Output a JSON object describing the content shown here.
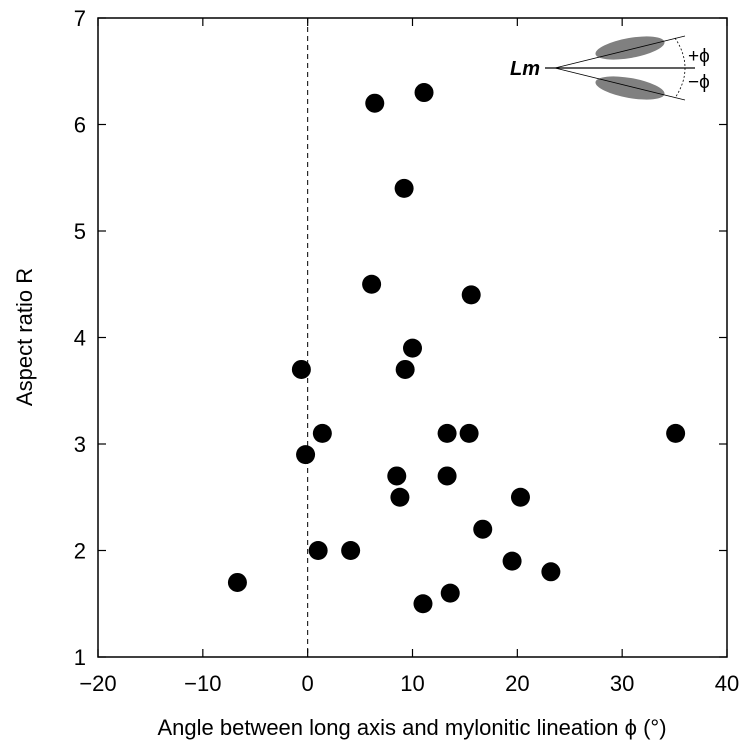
{
  "chart_data": {
    "type": "scatter",
    "xlabel": "Angle between long axis and mylonitic lineation ϕ (°)",
    "ylabel": "Aspect ratio R",
    "x": [
      -6.7,
      -0.6,
      -0.2,
      1.4,
      1.0,
      4.1,
      6.4,
      11.1,
      9.2,
      6.1,
      15.6,
      10.0,
      9.3,
      13.3,
      15.4,
      35.1,
      8.5,
      13.3,
      8.8,
      20.3,
      16.7,
      19.5,
      23.2,
      11.0,
      13.6
    ],
    "values": [
      1.7,
      3.7,
      2.9,
      3.1,
      2.0,
      2.0,
      6.2,
      6.3,
      5.4,
      4.5,
      4.4,
      3.9,
      3.7,
      3.1,
      3.1,
      3.1,
      2.7,
      2.7,
      2.5,
      2.5,
      2.2,
      1.9,
      1.8,
      1.5,
      1.6
    ],
    "color": "#000000",
    "xlim": [
      -20,
      40
    ],
    "ylim": [
      1,
      7
    ],
    "xticks": [
      {
        "value": -20,
        "label": "−20"
      },
      {
        "value": -10,
        "label": "−10"
      },
      0,
      10,
      20,
      30,
      40
    ],
    "yticks": [
      1,
      2,
      3,
      4,
      5,
      6,
      7
    ],
    "vline": 0,
    "inset_labels": [
      "Lm",
      "+ϕ",
      "−ϕ"
    ]
  }
}
